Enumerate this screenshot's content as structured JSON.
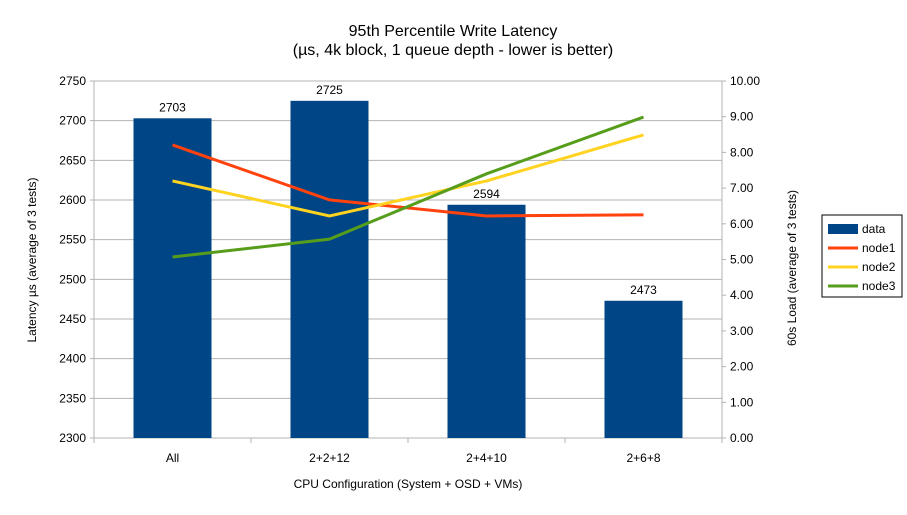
{
  "chart_data": {
    "type": "bar+line",
    "title": "95th Percentile Write Latency",
    "subtitle": "(µs, 4k block, 1 queue depth - lower is better)",
    "xlabel": "CPU Configuration (System + OSD + VMs)",
    "ylabel": "Latency µs (average of 3 tests)",
    "y2label": "60s Load (average of 3 tests)",
    "categories": [
      "All",
      "2+2+12",
      "2+4+10",
      "2+6+8"
    ],
    "ylim": [
      2300,
      2750
    ],
    "yticks": [
      2300,
      2350,
      2400,
      2450,
      2500,
      2550,
      2600,
      2650,
      2700,
      2750
    ],
    "y2lim": [
      0,
      10
    ],
    "y2ticks": [
      "0.00",
      "1.00",
      "2.00",
      "3.00",
      "4.00",
      "5.00",
      "6.00",
      "7.00",
      "8.00",
      "9.00",
      "10.00"
    ],
    "grid": true,
    "legend": "right",
    "bars": {
      "name": "data",
      "color": "#004586",
      "values": [
        2703,
        2725,
        2594,
        2473
      ]
    },
    "series": [
      {
        "name": "node1",
        "color": "#ff420e",
        "axis": "right",
        "values": [
          8.21,
          6.67,
          6.22,
          6.25
        ]
      },
      {
        "name": "node2",
        "color": "#ffd320",
        "axis": "right",
        "values": [
          7.2,
          6.22,
          7.2,
          8.49
        ]
      },
      {
        "name": "node3",
        "color": "#579d1c",
        "axis": "right",
        "values": [
          5.07,
          5.57,
          7.4,
          8.99
        ]
      }
    ]
  }
}
